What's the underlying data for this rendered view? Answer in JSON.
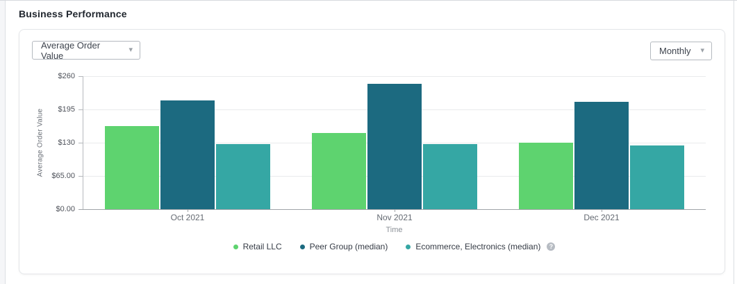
{
  "page": {
    "title": "Business Performance"
  },
  "controls": {
    "metric_dropdown": {
      "value": "Average Order Value"
    },
    "period_dropdown": {
      "value": "Monthly"
    }
  },
  "icons": {
    "chevron_down": "▾",
    "help": "?"
  },
  "chart_data": {
    "type": "bar",
    "title": "Business Performance",
    "categories": [
      "Oct 2021",
      "Nov 2021",
      "Dec 2021"
    ],
    "series": [
      {
        "name": "Retail LLC",
        "color": "#5ed36f",
        "values": [
          163,
          149,
          130
        ]
      },
      {
        "name": "Peer Group (median)",
        "color": "#1c6a80",
        "values": [
          212,
          245,
          210
        ]
      },
      {
        "name": "Ecommerce, Electronics (median)",
        "color": "#35a7a4",
        "values": [
          127,
          127,
          124
        ]
      }
    ],
    "xlabel": "Time",
    "ylabel": "Average Order Value",
    "ylim": [
      0,
      260
    ],
    "yticks": [
      {
        "value": 0,
        "label": "$0.00"
      },
      {
        "value": 65,
        "label": "$65.00"
      },
      {
        "value": 130,
        "label": "$130"
      },
      {
        "value": 195,
        "label": "$195"
      },
      {
        "value": 260,
        "label": "$260"
      }
    ],
    "grid": true,
    "legend_position": "bottom"
  }
}
